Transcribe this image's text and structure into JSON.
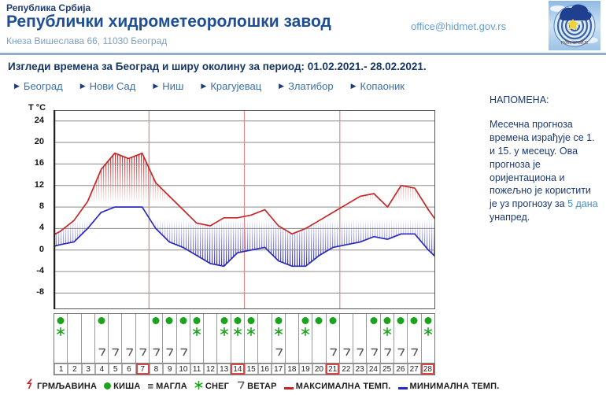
{
  "header": {
    "country": "Република Србија",
    "org": "Републички хидрометеоролошки завод",
    "address": "Кнеза Вишеслава 66, 11030 Београд",
    "email": "office@hidmet.gov.rs",
    "logo_text": "РХМЗ СРБИЈЕ"
  },
  "page_title": "Изгледи времена за Београд и ширу околину за период: 01.02.2021.- 28.02.2021.",
  "nav": {
    "items": [
      {
        "label": "Београд"
      },
      {
        "label": "Нови Сад"
      },
      {
        "label": "Ниш"
      },
      {
        "label": "Крагујевац"
      },
      {
        "label": "Златибор"
      },
      {
        "label": "Копаоник"
      }
    ]
  },
  "note": {
    "heading": "НАПОМЕНА:",
    "body_before": "Месечна прогноза времена израђује се 1. и 15. у месецу. Ова прогноза је оријентациона и пожељно је користити је уз прогнозу за ",
    "link": "5 дана",
    "body_after": " унапред."
  },
  "chart_data": {
    "type": "line",
    "title": "",
    "xlabel": "",
    "ylabel": "T °C",
    "x": [
      1,
      2,
      3,
      4,
      5,
      6,
      7,
      8,
      9,
      10,
      11,
      12,
      13,
      14,
      15,
      16,
      17,
      18,
      19,
      20,
      21,
      22,
      23,
      24,
      25,
      26,
      27,
      28
    ],
    "yticks": [
      24,
      20,
      16,
      12,
      8,
      4,
      0,
      -4,
      -8
    ],
    "ylim": [
      -11,
      26
    ],
    "grid": "horizontal gray + weekly vertical red",
    "week_separators_after_days": [
      7,
      14,
      21
    ],
    "legend_position": "bottom",
    "series": [
      {
        "name": "МАКСИМАЛНА ТЕМП.",
        "color": "#c42727",
        "values": [
          3.5,
          5.5,
          9,
          15,
          18,
          17,
          18,
          12.5,
          10,
          7.5,
          5,
          4.5,
          6,
          6,
          6.5,
          7.5,
          4.5,
          3,
          4,
          5.5,
          7,
          8.5,
          10,
          10.5,
          8,
          12,
          11.5,
          7.5
        ]
      },
      {
        "name": "МИНИМАЛНА ТЕМП.",
        "color": "#2929bd",
        "values": [
          1,
          1.5,
          4,
          7,
          8,
          8,
          8,
          4,
          1.5,
          0.5,
          -1,
          -2.5,
          -3,
          -0.5,
          0,
          0.5,
          -2,
          -3,
          -3,
          -1,
          0.5,
          1,
          1.5,
          2.5,
          2,
          3,
          3,
          0
        ]
      }
    ]
  },
  "strip": {
    "boxed_days": [
      7,
      14,
      21,
      28
    ],
    "days": [
      {
        "day": 1,
        "rain": true,
        "snow": true,
        "wind": false
      },
      {
        "day": 2,
        "rain": false,
        "snow": false,
        "wind": false
      },
      {
        "day": 3,
        "rain": false,
        "snow": false,
        "wind": false
      },
      {
        "day": 4,
        "rain": true,
        "snow": false,
        "wind": true
      },
      {
        "day": 5,
        "rain": false,
        "snow": false,
        "wind": true
      },
      {
        "day": 6,
        "rain": false,
        "snow": false,
        "wind": true
      },
      {
        "day": 7,
        "rain": false,
        "snow": false,
        "wind": true
      },
      {
        "day": 8,
        "rain": true,
        "snow": false,
        "wind": true
      },
      {
        "day": 9,
        "rain": true,
        "snow": false,
        "wind": true
      },
      {
        "day": 10,
        "rain": true,
        "snow": false,
        "wind": true
      },
      {
        "day": 11,
        "rain": true,
        "snow": true,
        "wind": false
      },
      {
        "day": 12,
        "rain": false,
        "snow": false,
        "wind": false
      },
      {
        "day": 13,
        "rain": true,
        "snow": true,
        "wind": false
      },
      {
        "day": 14,
        "rain": true,
        "snow": true,
        "wind": false
      },
      {
        "day": 15,
        "rain": true,
        "snow": true,
        "wind": false
      },
      {
        "day": 16,
        "rain": false,
        "snow": false,
        "wind": false
      },
      {
        "day": 17,
        "rain": true,
        "snow": true,
        "wind": true
      },
      {
        "day": 18,
        "rain": false,
        "snow": false,
        "wind": false
      },
      {
        "day": 19,
        "rain": true,
        "snow": true,
        "wind": false
      },
      {
        "day": 20,
        "rain": true,
        "snow": false,
        "wind": false
      },
      {
        "day": 21,
        "rain": true,
        "snow": false,
        "wind": true
      },
      {
        "day": 22,
        "rain": false,
        "snow": false,
        "wind": true
      },
      {
        "day": 23,
        "rain": false,
        "snow": false,
        "wind": true
      },
      {
        "day": 24,
        "rain": true,
        "snow": false,
        "wind": true
      },
      {
        "day": 25,
        "rain": true,
        "snow": true,
        "wind": true
      },
      {
        "day": 26,
        "rain": true,
        "snow": false,
        "wind": true
      },
      {
        "day": 27,
        "rain": true,
        "snow": false,
        "wind": true
      },
      {
        "day": 28,
        "rain": true,
        "snow": true,
        "wind": false
      }
    ]
  },
  "legend": {
    "items": [
      {
        "icon": "thunder-icon",
        "label": "ГРМЉАВИНА"
      },
      {
        "icon": "rain-icon",
        "label": "КИША"
      },
      {
        "icon": "fog-icon",
        "label": "МАГЛА"
      },
      {
        "icon": "snow-icon",
        "label": "СНЕГ"
      },
      {
        "icon": "wind-icon",
        "label": "ВЕТАР"
      },
      {
        "icon": "max-temp-line-icon",
        "label": "МАКСИМАЛНА ТЕМП."
      },
      {
        "icon": "min-temp-line-icon",
        "label": "МИНИМАЛНА ТЕМП."
      }
    ]
  },
  "colors": {
    "header_navy": "#1c3c74",
    "org_blue": "#1e4e94",
    "address_blue": "#7e9ec2",
    "email_blue": "#63a0d4",
    "divider": "#93aecb",
    "nav_blue": "#3a6fa9",
    "note_navy": "#1b3a6e",
    "note_link": "#4a90c8",
    "grid_gray": "#8a8a8a",
    "week_red": "#d98b8b",
    "max_red": "#c42727",
    "min_blue": "#2929bd",
    "icon_green": "#1ca21c"
  }
}
